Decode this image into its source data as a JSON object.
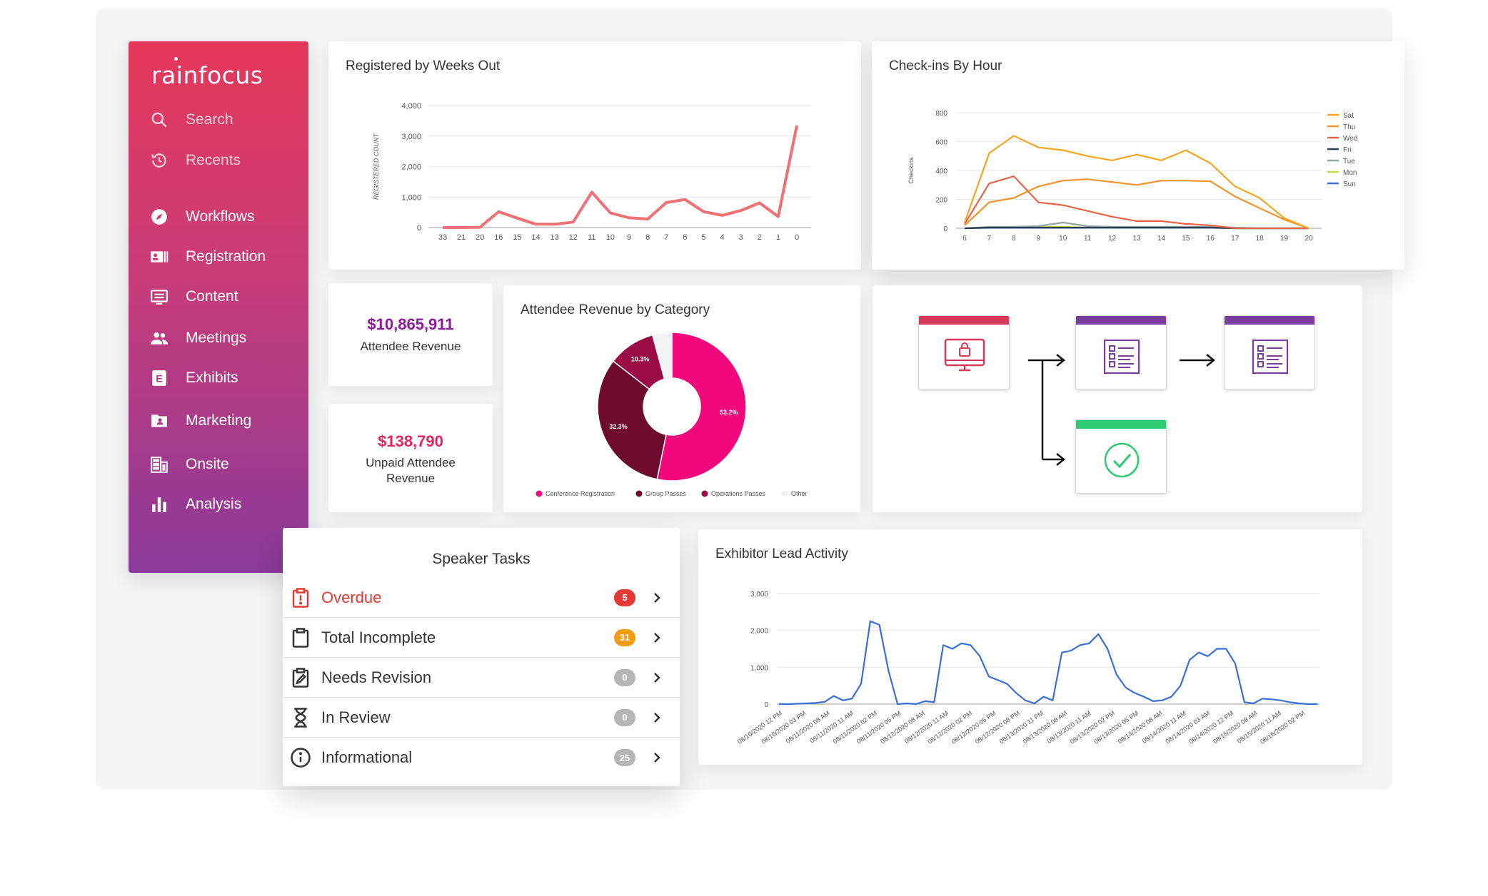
{
  "brand": {
    "name": "rainfocus"
  },
  "sidebar": {
    "items": [
      {
        "label": "Search",
        "icon": "search-icon"
      },
      {
        "label": "Recents",
        "icon": "history-icon"
      },
      {
        "label": "Workflows",
        "icon": "compass-icon"
      },
      {
        "label": "Registration",
        "icon": "id-card-icon"
      },
      {
        "label": "Content",
        "icon": "monitor-icon"
      },
      {
        "label": "Meetings",
        "icon": "people-icon"
      },
      {
        "label": "Exhibits",
        "icon": "exhibits-icon"
      },
      {
        "label": "Marketing",
        "icon": "contact-card-icon"
      },
      {
        "label": "Onsite",
        "icon": "building-icon"
      },
      {
        "label": "Analysis",
        "icon": "bar-chart-icon"
      }
    ]
  },
  "cards": {
    "registered": {
      "title": "Registered by Weeks Out"
    },
    "checkins": {
      "title": "Check-ins By Hour"
    },
    "revenue_category": {
      "title": "Attendee Revenue by Category"
    },
    "exhibitor": {
      "title": "Exhibitor Lead Activity"
    }
  },
  "kpis": {
    "attendee_revenue": {
      "value": "$10,865,911",
      "label": "Attendee Revenue",
      "color": "#8d1a9c"
    },
    "unpaid_revenue": {
      "value": "$138,790",
      "label": "Unpaid Attendee Revenue",
      "color": "#e0245e"
    }
  },
  "speaker_tasks": {
    "title": "Speaker Tasks",
    "items": [
      {
        "label": "Overdue",
        "count": "5",
        "badge_color": "#e53935",
        "icon": "clipboard-alert-icon",
        "highlight": true
      },
      {
        "label": "Total Incomplete",
        "count": "31",
        "badge_color": "#f39c12",
        "icon": "clipboard-icon"
      },
      {
        "label": "Needs Revision",
        "count": "0",
        "badge_color": "#b5b5b5",
        "icon": "clipboard-edit-icon"
      },
      {
        "label": "In Review",
        "count": "0",
        "badge_color": "#b5b5b5",
        "icon": "hourglass-icon"
      },
      {
        "label": "Informational",
        "count": "25",
        "badge_color": "#b5b5b5",
        "icon": "info-icon"
      }
    ]
  },
  "workflow": {
    "nodes": [
      {
        "icon": "lock-monitor-icon",
        "accent": "#d63a5a"
      },
      {
        "icon": "form-list-icon",
        "accent": "#7b3e9f"
      },
      {
        "icon": "form-list-icon",
        "accent": "#7b3e9f"
      },
      {
        "icon": "check-circle-icon",
        "accent": "#2ecc71"
      }
    ]
  },
  "chart_data": [
    {
      "type": "line",
      "ylabel": "REGISTERED COUNT",
      "ylim": [
        0,
        4000
      ],
      "yticks": [
        "4,000",
        "3,000",
        "2,000",
        "1,000",
        "0"
      ],
      "categories": [
        "33",
        "21",
        "20",
        "16",
        "15",
        "14",
        "13",
        "12",
        "11",
        "10",
        "9",
        "8",
        "7",
        "6",
        "5",
        "4",
        "3",
        "2",
        "1",
        "0"
      ],
      "values": [
        0,
        0,
        10,
        520,
        310,
        110,
        110,
        180,
        1160,
        480,
        320,
        280,
        820,
        920,
        520,
        400,
        560,
        810,
        360,
        3350
      ],
      "color": "#f07075"
    },
    {
      "type": "line",
      "ylabel": "Checkins",
      "ylim": [
        0,
        800
      ],
      "yticks": [
        "800",
        "600",
        "400",
        "200",
        "0"
      ],
      "x": [
        "6",
        "7",
        "8",
        "9",
        "10",
        "11",
        "12",
        "13",
        "14",
        "15",
        "16",
        "17",
        "18",
        "19",
        "20"
      ],
      "legend_position": "right",
      "series": [
        {
          "name": "Sat",
          "color": "#f5a623",
          "values": [
            40,
            520,
            640,
            560,
            540,
            500,
            470,
            510,
            470,
            540,
            450,
            290,
            210,
            70,
            0
          ]
        },
        {
          "name": "Thu",
          "color": "#f0932b",
          "values": [
            20,
            180,
            210,
            290,
            330,
            340,
            320,
            300,
            330,
            330,
            325,
            220,
            140,
            60,
            0
          ]
        },
        {
          "name": "Wed",
          "color": "#e8644a",
          "values": [
            30,
            310,
            360,
            180,
            160,
            120,
            80,
            50,
            50,
            30,
            20,
            0,
            0,
            0,
            0
          ]
        },
        {
          "name": "Fri",
          "color": "#2c3e50",
          "values": [
            0,
            5,
            5,
            5,
            5,
            5,
            5,
            5,
            5,
            5,
            5,
            0,
            0,
            0,
            0
          ]
        },
        {
          "name": "Tue",
          "color": "#95a5a6",
          "values": [
            0,
            10,
            10,
            15,
            40,
            15,
            10,
            10,
            10,
            10,
            10,
            5,
            0,
            0,
            0
          ]
        },
        {
          "name": "Mon",
          "color": "#c7d84a",
          "values": [
            0,
            8,
            10,
            10,
            10,
            5,
            5,
            5,
            5,
            5,
            5,
            0,
            0,
            0,
            0
          ]
        },
        {
          "name": "Sun",
          "color": "#3a6fd8",
          "values": [
            0,
            3,
            3,
            3,
            3,
            3,
            3,
            3,
            3,
            3,
            3,
            0,
            0,
            0,
            0
          ]
        }
      ]
    },
    {
      "type": "pie",
      "donut": true,
      "legend_position": "bottom",
      "slices": [
        {
          "name": "Conference Registration",
          "value": 53.2,
          "label": "53.2%",
          "color": "#f0087c"
        },
        {
          "name": "Group Passes",
          "value": 32.3,
          "label": "32.3%",
          "color": "#6e0a2e"
        },
        {
          "name": "Operations Passes",
          "value": 10.3,
          "label": "10.3%",
          "color": "#9b0b45"
        },
        {
          "name": "Other",
          "value": 4.2,
          "label": "",
          "color": "#f3f3f3"
        }
      ]
    },
    {
      "type": "line",
      "ylim": [
        0,
        3000
      ],
      "yticks": [
        "3,000",
        "2,000",
        "1,000",
        "0"
      ],
      "xticks": [
        "08/10/2020 12 PM",
        "08/10/2020 03 PM",
        "08/11/2020 08 AM",
        "08/11/2020 11 AM",
        "08/11/2020 02 PM",
        "08/11/2020 05 PM",
        "08/12/2020 08 AM",
        "08/12/2020 11 AM",
        "08/12/2020 02 PM",
        "08/12/2020 05 PM",
        "08/12/2020 08 PM",
        "08/13/2020 11 PM",
        "08/13/2020 08 AM",
        "08/13/2020 11 AM",
        "08/13/2020 02 PM",
        "08/13/2020 05 PM",
        "08/14/2020 08 AM",
        "08/14/2020 11 AM",
        "08/14/2020 03 AM",
        "08/14/2020 12 PM",
        "08/15/2020 08 AM",
        "08/15/2020 11 AM",
        "08/15/2020 02 PM"
      ],
      "values": [
        0,
        0,
        10,
        20,
        30,
        60,
        220,
        100,
        150,
        550,
        2250,
        2150,
        900,
        0,
        20,
        0,
        80,
        50,
        1600,
        1500,
        1650,
        1600,
        1300,
        750,
        650,
        550,
        300,
        100,
        20,
        200,
        100,
        1400,
        1450,
        1600,
        1650,
        1900,
        1500,
        800,
        450,
        300,
        200,
        80,
        100,
        200,
        500,
        1200,
        1400,
        1300,
        1500,
        1500,
        1100,
        50,
        20,
        150,
        130,
        100,
        50,
        20,
        0,
        0
      ],
      "color": "#3a6fd8"
    }
  ]
}
